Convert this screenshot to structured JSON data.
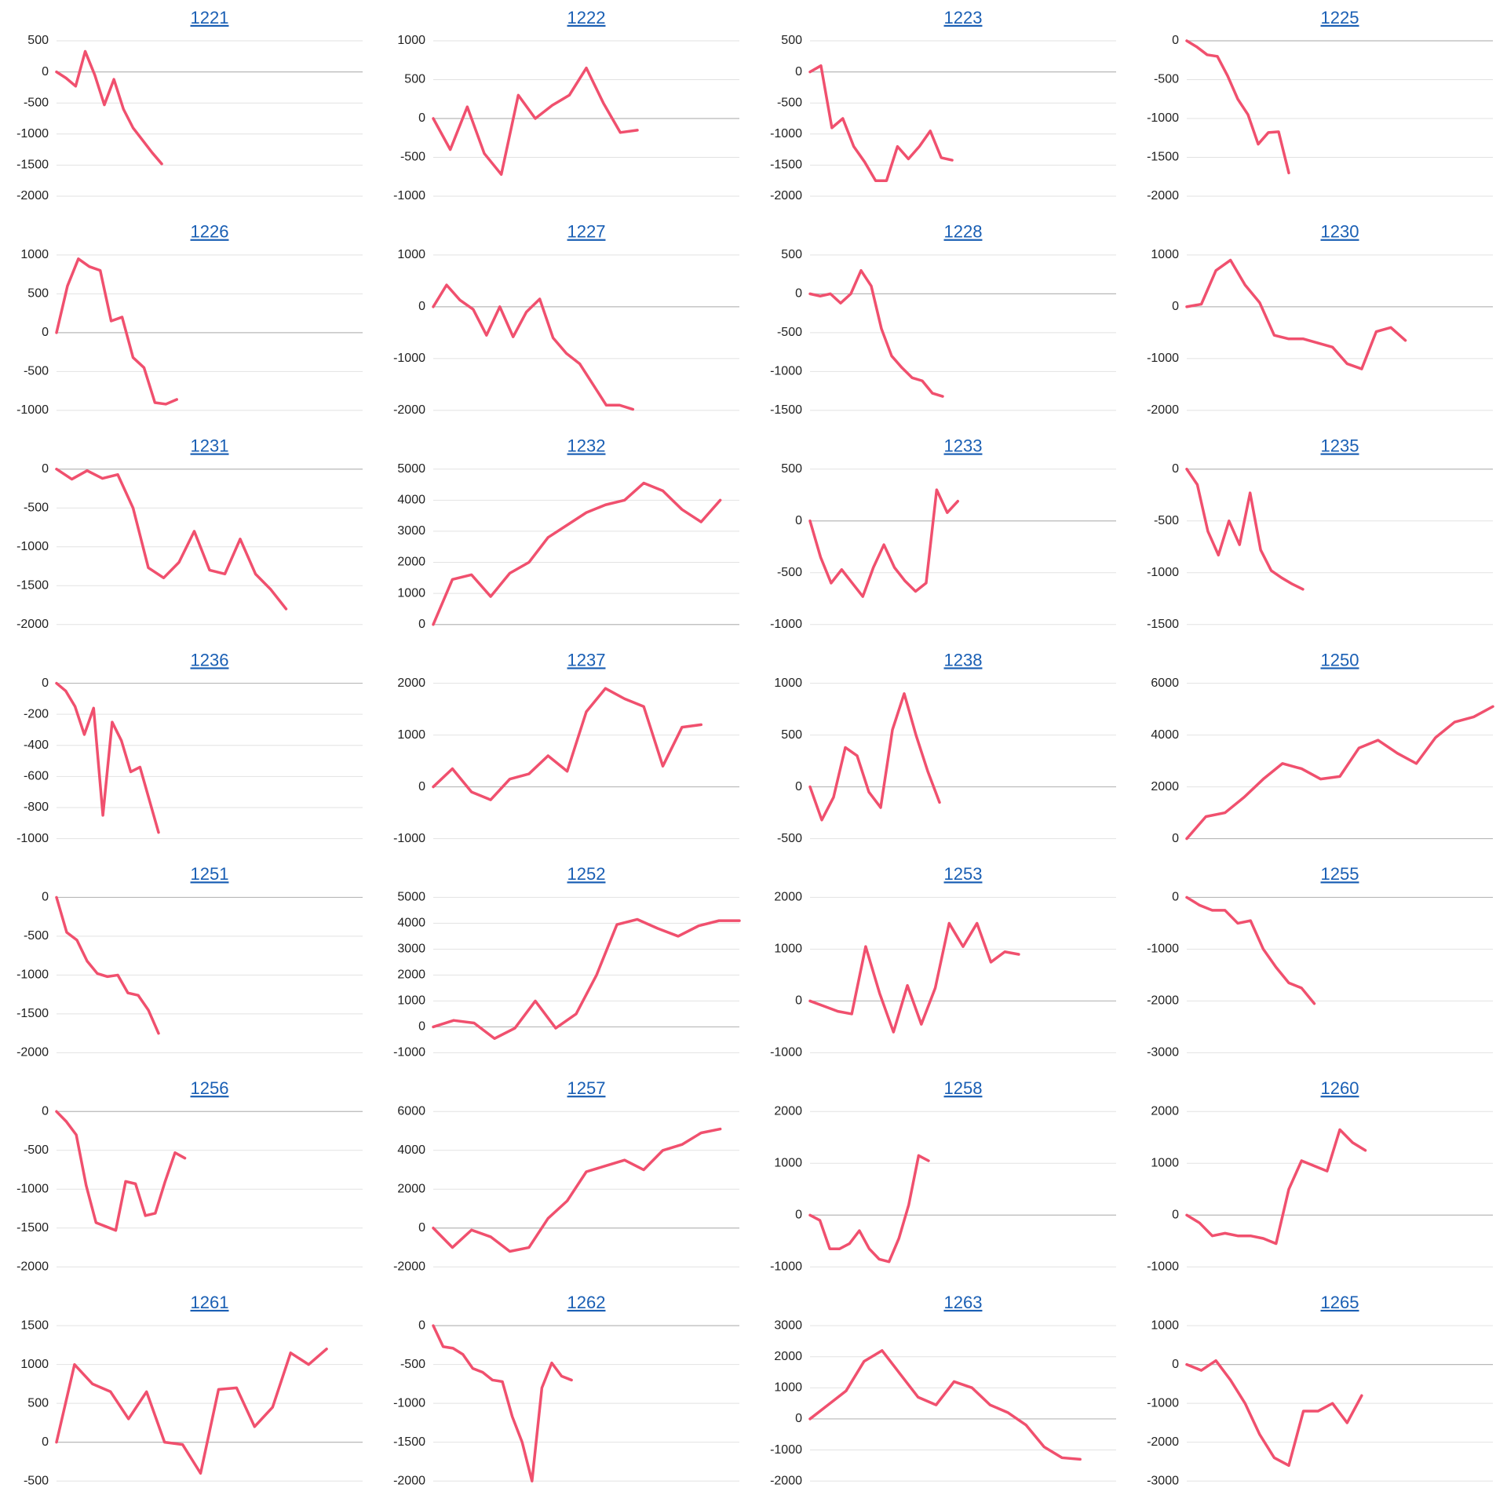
{
  "chart_data": [
    {
      "type": "line",
      "title": "1221",
      "color": "#f0506e",
      "grid": true,
      "xlim": [
        0,
        32
      ],
      "ylim": [
        -2000,
        500
      ],
      "yticks": [
        -2000,
        -1500,
        -1000,
        -500,
        0,
        500
      ],
      "values": [
        0,
        -100,
        -230,
        330,
        -50,
        -530,
        -120,
        -600,
        -900,
        -1100,
        -1300,
        -1480
      ]
    },
    {
      "type": "line",
      "title": "1222",
      "color": "#f0506e",
      "grid": true,
      "xlim": [
        0,
        18
      ],
      "ylim": [
        -1000,
        1000
      ],
      "yticks": [
        -1000,
        -500,
        0,
        500,
        1000
      ],
      "values": [
        0,
        -400,
        150,
        -450,
        -720,
        300,
        0,
        170,
        300,
        650,
        200,
        -180,
        -150
      ]
    },
    {
      "type": "line",
      "title": "1223",
      "color": "#f0506e",
      "grid": true,
      "xlim": [
        0,
        28
      ],
      "ylim": [
        -2000,
        500
      ],
      "yticks": [
        -2000,
        -1500,
        -1000,
        -500,
        0,
        500
      ],
      "values": [
        0,
        100,
        -900,
        -750,
        -1200,
        -1450,
        -1750,
        -1750,
        -1200,
        -1400,
        -1200,
        -950,
        -1380,
        -1420
      ]
    },
    {
      "type": "line",
      "title": "1225",
      "color": "#f0506e",
      "grid": true,
      "xlim": [
        0,
        30
      ],
      "ylim": [
        -2000,
        0
      ],
      "yticks": [
        -2000,
        -1500,
        -1000,
        -500,
        0
      ],
      "values": [
        0,
        -80,
        -180,
        -200,
        -450,
        -750,
        -950,
        -1330,
        -1180,
        -1170,
        -1700
      ]
    },
    {
      "type": "line",
      "title": "1226",
      "color": "#f0506e",
      "grid": true,
      "xlim": [
        0,
        28
      ],
      "ylim": [
        -1000,
        1000
      ],
      "yticks": [
        -1000,
        -500,
        0,
        500,
        1000
      ],
      "values": [
        0,
        600,
        950,
        850,
        800,
        150,
        200,
        -320,
        -450,
        -900,
        -920,
        -860
      ]
    },
    {
      "type": "line",
      "title": "1227",
      "color": "#f0506e",
      "grid": true,
      "xlim": [
        0,
        23
      ],
      "ylim": [
        -2000,
        1000
      ],
      "yticks": [
        -2000,
        -1000,
        0,
        1000
      ],
      "values": [
        0,
        420,
        130,
        -50,
        -550,
        0,
        -580,
        -100,
        150,
        -600,
        -900,
        -1100,
        -1500,
        -1900,
        -1900,
        -1980
      ]
    },
    {
      "type": "line",
      "title": "1228",
      "color": "#f0506e",
      "grid": true,
      "xlim": [
        0,
        30
      ],
      "ylim": [
        -1500,
        500
      ],
      "yticks": [
        -1500,
        -1000,
        -500,
        0,
        500
      ],
      "values": [
        0,
        -30,
        0,
        -120,
        0,
        300,
        100,
        -450,
        -800,
        -950,
        -1080,
        -1120,
        -1280,
        -1320
      ]
    },
    {
      "type": "line",
      "title": "1230",
      "color": "#f0506e",
      "grid": true,
      "xlim": [
        0,
        21
      ],
      "ylim": [
        -2000,
        1000
      ],
      "yticks": [
        -2000,
        -1000,
        0,
        1000
      ],
      "values": [
        0,
        50,
        700,
        900,
        420,
        80,
        -550,
        -620,
        -620,
        -700,
        -780,
        -1100,
        -1200,
        -480,
        -400,
        -650
      ]
    },
    {
      "type": "line",
      "title": "1231",
      "color": "#f0506e",
      "grid": true,
      "xlim": [
        0,
        20
      ],
      "ylim": [
        -2000,
        0
      ],
      "yticks": [
        -2000,
        -1500,
        -1000,
        -500,
        0
      ],
      "values": [
        0,
        -130,
        -20,
        -120,
        -70,
        -500,
        -1270,
        -1400,
        -1200,
        -800,
        -1300,
        -1350,
        -900,
        -1350,
        -1550,
        -1800
      ]
    },
    {
      "type": "line",
      "title": "1232",
      "color": "#f0506e",
      "grid": true,
      "xlim": [
        0,
        16
      ],
      "ylim": [
        0,
        5000
      ],
      "yticks": [
        0,
        1000,
        2000,
        3000,
        4000,
        5000
      ],
      "values": [
        0,
        1450,
        1600,
        900,
        1650,
        2000,
        2800,
        3200,
        3600,
        3850,
        4000,
        4550,
        4300,
        3700,
        3300,
        4000
      ]
    },
    {
      "type": "line",
      "title": "1233",
      "color": "#f0506e",
      "grid": true,
      "xlim": [
        0,
        29
      ],
      "ylim": [
        -1000,
        500
      ],
      "yticks": [
        -1000,
        -500,
        0,
        500
      ],
      "values": [
        0,
        -350,
        -600,
        -470,
        -600,
        -730,
        -450,
        -230,
        -450,
        -580,
        -680,
        -600,
        300,
        80,
        190
      ]
    },
    {
      "type": "line",
      "title": "1235",
      "color": "#f0506e",
      "grid": true,
      "xlim": [
        0,
        29
      ],
      "ylim": [
        -1500,
        0
      ],
      "yticks": [
        -1500,
        -1000,
        -500,
        0
      ],
      "values": [
        0,
        -150,
        -600,
        -830,
        -500,
        -730,
        -230,
        -780,
        -980,
        -1050,
        -1110,
        -1160
      ]
    },
    {
      "type": "line",
      "title": "1236",
      "color": "#f0506e",
      "grid": true,
      "xlim": [
        0,
        33
      ],
      "ylim": [
        -1000,
        0
      ],
      "yticks": [
        -1000,
        -800,
        -600,
        -400,
        -200,
        0
      ],
      "values": [
        0,
        -50,
        -150,
        -330,
        -160,
        -850,
        -250,
        -370,
        -570,
        -540,
        -750,
        -960
      ]
    },
    {
      "type": "line",
      "title": "1237",
      "color": "#f0506e",
      "grid": true,
      "xlim": [
        0,
        16
      ],
      "ylim": [
        -1000,
        2000
      ],
      "yticks": [
        -1000,
        0,
        1000,
        2000
      ],
      "values": [
        0,
        350,
        -100,
        -250,
        150,
        250,
        600,
        300,
        1450,
        1900,
        1700,
        1550,
        400,
        1150,
        1200
      ]
    },
    {
      "type": "line",
      "title": "1238",
      "color": "#f0506e",
      "grid": true,
      "xlim": [
        0,
        26
      ],
      "ylim": [
        -500,
        1000
      ],
      "yticks": [
        -500,
        0,
        500,
        1000
      ],
      "values": [
        0,
        -320,
        -100,
        380,
        300,
        -50,
        -200,
        550,
        900,
        500,
        150,
        -150
      ]
    },
    {
      "type": "line",
      "title": "1250",
      "color": "#f0506e",
      "grid": true,
      "xlim": [
        0,
        16
      ],
      "ylim": [
        0,
        6000
      ],
      "yticks": [
        0,
        2000,
        4000,
        6000
      ],
      "values": [
        0,
        850,
        1000,
        1600,
        2300,
        2900,
        2700,
        2300,
        2400,
        3500,
        3800,
        3300,
        2900,
        3900,
        4500,
        4700,
        5100
      ]
    },
    {
      "type": "line",
      "title": "1251",
      "color": "#f0506e",
      "grid": true,
      "xlim": [
        0,
        30
      ],
      "ylim": [
        -2000,
        0
      ],
      "yticks": [
        -2000,
        -1500,
        -1000,
        -500,
        0
      ],
      "values": [
        0,
        -450,
        -550,
        -820,
        -980,
        -1020,
        -1000,
        -1230,
        -1260,
        -1450,
        -1750
      ]
    },
    {
      "type": "line",
      "title": "1252",
      "color": "#f0506e",
      "grid": true,
      "xlim": [
        0,
        15
      ],
      "ylim": [
        -1000,
        5000
      ],
      "yticks": [
        -1000,
        0,
        1000,
        2000,
        3000,
        4000,
        5000
      ],
      "values": [
        0,
        250,
        150,
        -450,
        -50,
        1000,
        -50,
        500,
        2000,
        3950,
        4150,
        3800,
        3500,
        3900,
        4100,
        4100
      ]
    },
    {
      "type": "line",
      "title": "1253",
      "color": "#f0506e",
      "grid": true,
      "xlim": [
        0,
        22
      ],
      "ylim": [
        -1000,
        2000
      ],
      "yticks": [
        -1000,
        0,
        1000,
        2000
      ],
      "values": [
        0,
        -100,
        -200,
        -250,
        1050,
        150,
        -600,
        300,
        -450,
        250,
        1500,
        1050,
        1500,
        750,
        950,
        900
      ]
    },
    {
      "type": "line",
      "title": "1255",
      "color": "#f0506e",
      "grid": true,
      "xlim": [
        0,
        24
      ],
      "ylim": [
        -3000,
        0
      ],
      "yticks": [
        -3000,
        -2000,
        -1000,
        0
      ],
      "values": [
        0,
        -150,
        -250,
        -250,
        -500,
        -450,
        -1000,
        -1350,
        -1650,
        -1750,
        -2050
      ]
    },
    {
      "type": "line",
      "title": "1256",
      "color": "#f0506e",
      "grid": true,
      "xlim": [
        0,
        31
      ],
      "ylim": [
        -2000,
        0
      ],
      "yticks": [
        -2000,
        -1500,
        -1000,
        -500,
        0
      ],
      "values": [
        0,
        -130,
        -300,
        -950,
        -1430,
        -1480,
        -1530,
        -900,
        -930,
        -1340,
        -1310,
        -900,
        -530,
        -600
      ]
    },
    {
      "type": "line",
      "title": "1257",
      "color": "#f0506e",
      "grid": true,
      "xlim": [
        0,
        16
      ],
      "ylim": [
        -2000,
        6000
      ],
      "yticks": [
        -2000,
        0,
        2000,
        4000,
        6000
      ],
      "values": [
        0,
        -1000,
        -100,
        -450,
        -1200,
        -1000,
        500,
        1400,
        2900,
        3200,
        3500,
        3000,
        4000,
        4300,
        4900,
        5100
      ]
    },
    {
      "type": "line",
      "title": "1258",
      "color": "#f0506e",
      "grid": true,
      "xlim": [
        0,
        31
      ],
      "ylim": [
        -1000,
        2000
      ],
      "yticks": [
        -1000,
        0,
        1000,
        2000
      ],
      "values": [
        0,
        -100,
        -650,
        -650,
        -550,
        -300,
        -650,
        -850,
        -900,
        -450,
        200,
        1150,
        1050
      ]
    },
    {
      "type": "line",
      "title": "1260",
      "color": "#f0506e",
      "grid": true,
      "xlim": [
        0,
        24
      ],
      "ylim": [
        -1000,
        2000
      ],
      "yticks": [
        -1000,
        0,
        1000,
        2000
      ],
      "values": [
        0,
        -150,
        -400,
        -350,
        -400,
        -400,
        -450,
        -550,
        500,
        1050,
        950,
        850,
        1650,
        1400,
        1250
      ]
    },
    {
      "type": "line",
      "title": "1261",
      "color": "#f0506e",
      "grid": true,
      "xlim": [
        0,
        17
      ],
      "ylim": [
        -500,
        1500
      ],
      "yticks": [
        -500,
        0,
        500,
        1000,
        1500
      ],
      "values": [
        0,
        1000,
        750,
        650,
        300,
        650,
        0,
        -30,
        -400,
        680,
        700,
        200,
        450,
        1150,
        1000,
        1200
      ]
    },
    {
      "type": "line",
      "title": "1262",
      "color": "#f0506e",
      "grid": true,
      "xlim": [
        0,
        31
      ],
      "ylim": [
        -2000,
        0
      ],
      "yticks": [
        -2000,
        -1500,
        -1000,
        -500,
        0
      ],
      "values": [
        0,
        -270,
        -290,
        -370,
        -550,
        -600,
        -700,
        -720,
        -1170,
        -1500,
        -2000,
        -800,
        -480,
        -650,
        -700
      ]
    },
    {
      "type": "line",
      "title": "1263",
      "color": "#f0506e",
      "grid": true,
      "xlim": [
        0,
        17
      ],
      "ylim": [
        -2000,
        3000
      ],
      "yticks": [
        -2000,
        -1000,
        0,
        1000,
        2000,
        3000
      ],
      "values": [
        0,
        450,
        900,
        1850,
        2200,
        1450,
        700,
        450,
        1200,
        1000,
        450,
        200,
        -200,
        -900,
        -1250,
        -1300
      ]
    },
    {
      "type": "line",
      "title": "1265",
      "color": "#f0506e",
      "grid": true,
      "xlim": [
        0,
        21
      ],
      "ylim": [
        -3000,
        1000
      ],
      "yticks": [
        -3000,
        -2000,
        -1000,
        0,
        1000
      ],
      "values": [
        0,
        -150,
        100,
        -400,
        -1000,
        -1800,
        -2400,
        -2600,
        -1200,
        -1200,
        -1000,
        -1500,
        -800
      ]
    }
  ]
}
